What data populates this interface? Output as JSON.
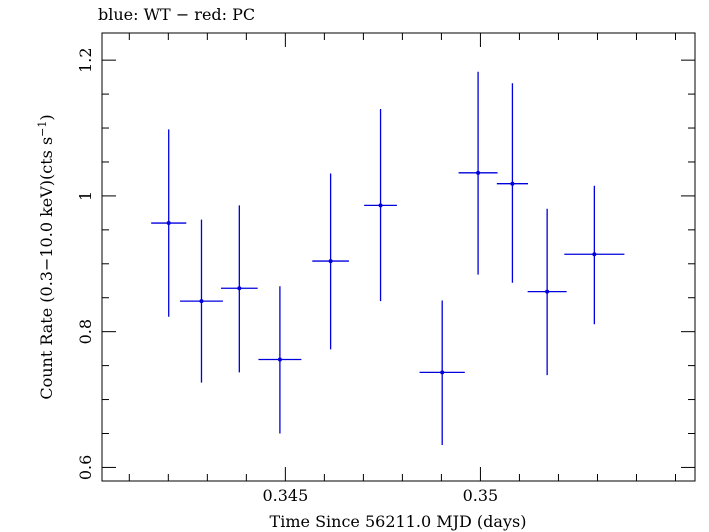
{
  "chart_data": {
    "type": "scatter",
    "title": "blue: WT − red: PC",
    "xlabel": "Time Since 56211.0 MJD (days)",
    "ylabel_main": "Count Rate (0.3−10.0 keV)(cts s",
    "ylabel_sup": "−1",
    "ylabel_end": ")",
    "xlim": [
      0.3403,
      0.3555
    ],
    "ylim": [
      0.58,
      1.24
    ],
    "x_ticks": [
      {
        "value": 0.345,
        "label": "0.345"
      },
      {
        "value": 0.35,
        "label": "0.35"
      }
    ],
    "x_minor_step": 0.001,
    "y_ticks": [
      {
        "value": 0.6,
        "label": "0.6"
      },
      {
        "value": 0.8,
        "label": "0.8"
      },
      {
        "value": 1.0,
        "label": "1"
      },
      {
        "value": 1.2,
        "label": "1.2"
      }
    ],
    "y_minor_step": 0.05,
    "grid": false,
    "series": [
      {
        "color": "#0000dd",
        "points": [
          {
            "x": 0.34201,
            "xerr": 0.00045,
            "y": 0.96,
            "yerr_low": 0.138,
            "yerr_high": 0.138
          },
          {
            "x": 0.34285,
            "xerr": 0.00055,
            "y": 0.845,
            "yerr_low": 0.12,
            "yerr_high": 0.12
          },
          {
            "x": 0.34382,
            "xerr": 0.00047,
            "y": 0.864,
            "yerr_low": 0.124,
            "yerr_high": 0.122
          },
          {
            "x": 0.34486,
            "xerr": 0.00055,
            "y": 0.759,
            "yerr_low": 0.109,
            "yerr_high": 0.108
          },
          {
            "x": 0.34616,
            "xerr": 0.00047,
            "y": 0.904,
            "yerr_low": 0.13,
            "yerr_high": 0.129
          },
          {
            "x": 0.34744,
            "xerr": 0.00042,
            "y": 0.986,
            "yerr_low": 0.141,
            "yerr_high": 0.142
          },
          {
            "x": 0.34902,
            "xerr": 0.00058,
            "y": 0.74,
            "yerr_low": 0.107,
            "yerr_high": 0.106
          },
          {
            "x": 0.34994,
            "xerr": 0.0005,
            "y": 1.034,
            "yerr_low": 0.15,
            "yerr_high": 0.149
          },
          {
            "x": 0.35082,
            "xerr": 0.0004,
            "y": 1.018,
            "yerr_low": 0.146,
            "yerr_high": 0.148
          },
          {
            "x": 0.35171,
            "xerr": 0.0005,
            "y": 0.859,
            "yerr_low": 0.123,
            "yerr_high": 0.122
          },
          {
            "x": 0.35292,
            "xerr": 0.00077,
            "y": 0.914,
            "yerr_low": 0.103,
            "yerr_high": 0.101
          }
        ]
      }
    ]
  }
}
